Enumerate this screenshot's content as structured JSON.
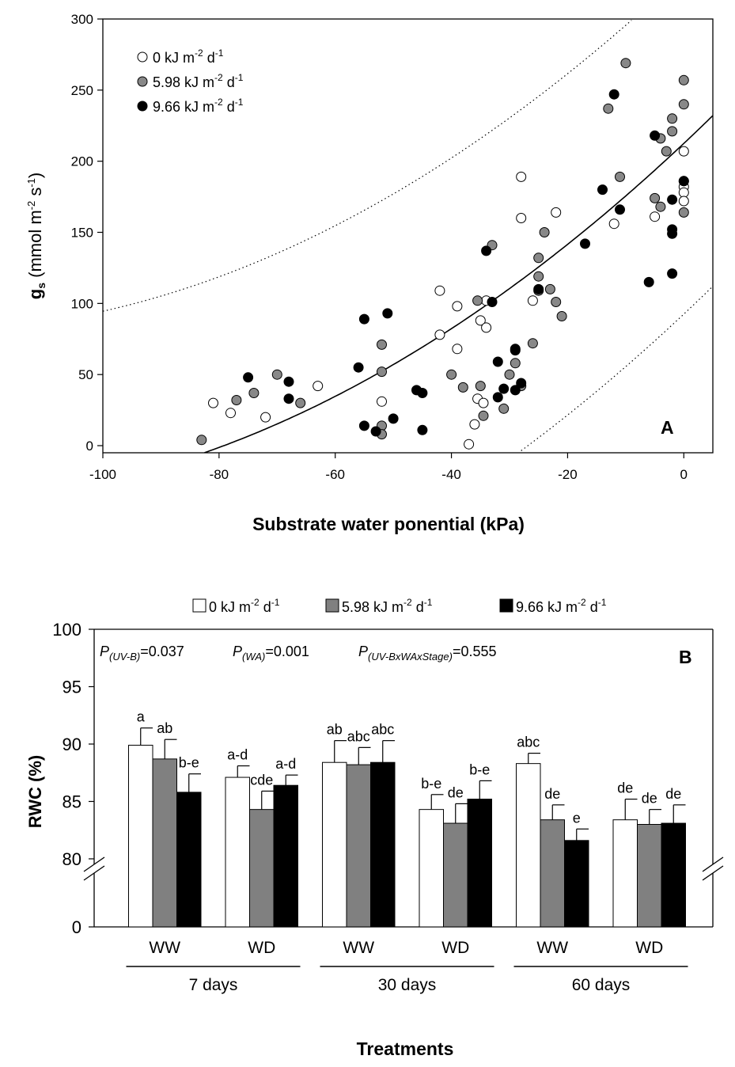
{
  "chart_data": [
    {
      "panel_label": "A",
      "type": "scatter",
      "xlabel": "Substrate water ponential (kPa)",
      "ylabel_main": "g",
      "ylabel_sub": "s",
      "ylabel_rest": " (mmol m",
      "ylabel_sup1": "-2",
      "ylabel_mid": " s",
      "ylabel_sup2": "-1",
      "ylabel_end": ")",
      "xlim": [
        -100,
        5
      ],
      "ylim": [
        -5,
        300
      ],
      "x_ticks": [
        -100,
        -80,
        -60,
        -40,
        -20,
        0
      ],
      "y_ticks": [
        0,
        50,
        100,
        150,
        200,
        250,
        300
      ],
      "fit_line": {
        "type": "quadratic",
        "coefficients": [
          212.5,
          3.84,
          0.0146
        ]
      },
      "confidence_band": {
        "upper_shift": 120,
        "lower_shift": -120,
        "style": "dotted"
      },
      "colors": {
        "0": "#ffffff",
        "5.98": "#888888",
        "9.66": "#000000"
      },
      "legend_position": "top-left",
      "series": [
        {
          "name_prefix": "0 kJ m",
          "name_sup1": "-2",
          "name_mid": " d",
          "name_sup2": "-1",
          "color": "#ffffff",
          "points": [
            [
              -81,
              30
            ],
            [
              -78,
              23
            ],
            [
              -72,
              20
            ],
            [
              -63,
              42
            ],
            [
              -52,
              31
            ],
            [
              -42,
              109
            ],
            [
              -42,
              78
            ],
            [
              -39,
              98
            ],
            [
              -39,
              68
            ],
            [
              -37,
              1
            ],
            [
              -36,
              15
            ],
            [
              -35.5,
              33
            ],
            [
              -35,
              88
            ],
            [
              -34.5,
              30
            ],
            [
              -34,
              102
            ],
            [
              -34,
              83
            ],
            [
              -28,
              189
            ],
            [
              -28,
              160
            ],
            [
              -26,
              102
            ],
            [
              -22,
              164
            ],
            [
              -12,
              156
            ],
            [
              -5,
              161
            ],
            [
              0,
              207
            ],
            [
              0,
              182
            ],
            [
              0,
              178
            ],
            [
              0,
              172
            ]
          ]
        },
        {
          "name_prefix": "5.98 kJ m",
          "name_sup1": "-2",
          "name_mid": " d",
          "name_sup2": "-1",
          "color": "#888888",
          "points": [
            [
              -83,
              4
            ],
            [
              -77,
              32
            ],
            [
              -74,
              37
            ],
            [
              -70,
              50
            ],
            [
              -66,
              30
            ],
            [
              -52,
              71
            ],
            [
              -52,
              52
            ],
            [
              -52,
              14
            ],
            [
              -52,
              8
            ],
            [
              -40,
              50
            ],
            [
              -38,
              41
            ],
            [
              -35.5,
              102
            ],
            [
              -35,
              42
            ],
            [
              -34.5,
              21
            ],
            [
              -33,
              141
            ],
            [
              -31,
              26
            ],
            [
              -30,
              50
            ],
            [
              -29,
              58
            ],
            [
              -28,
              42
            ],
            [
              -26,
              72
            ],
            [
              -25,
              109
            ],
            [
              -25,
              119
            ],
            [
              -25,
              132
            ],
            [
              -24,
              150
            ],
            [
              -23,
              110
            ],
            [
              -22,
              101
            ],
            [
              -21,
              91
            ],
            [
              -13,
              237
            ],
            [
              -11,
              189
            ],
            [
              -10,
              269
            ],
            [
              -5,
              174
            ],
            [
              -4,
              168
            ],
            [
              -4,
              216
            ],
            [
              -3,
              207
            ],
            [
              -2,
              230
            ],
            [
              -2,
              221
            ],
            [
              0,
              257
            ],
            [
              0,
              240
            ],
            [
              0,
              186
            ],
            [
              0,
              164
            ]
          ]
        },
        {
          "name_prefix": "9.66 kJ m",
          "name_sup1": "-2",
          "name_mid": " d",
          "name_sup2": "-1",
          "color": "#000000",
          "points": [
            [
              -75,
              48
            ],
            [
              -68,
              45
            ],
            [
              -68,
              33
            ],
            [
              -56,
              55
            ],
            [
              -55,
              89
            ],
            [
              -55,
              14
            ],
            [
              -53,
              10
            ],
            [
              -51,
              93
            ],
            [
              -50,
              19
            ],
            [
              -46,
              39
            ],
            [
              -45,
              37
            ],
            [
              -45,
              11
            ],
            [
              -34,
              137
            ],
            [
              -33,
              101
            ],
            [
              -32,
              59
            ],
            [
              -32,
              34
            ],
            [
              -31,
              40
            ],
            [
              -29,
              68
            ],
            [
              -29,
              67
            ],
            [
              -29,
              39
            ],
            [
              -28,
              44
            ],
            [
              -25,
              110
            ],
            [
              -17,
              142
            ],
            [
              -14,
              180
            ],
            [
              -12,
              247
            ],
            [
              -11,
              166
            ],
            [
              -6,
              115
            ],
            [
              -5,
              218
            ],
            [
              -2,
              173
            ],
            [
              -2,
              152
            ],
            [
              -2,
              149
            ],
            [
              -2,
              121
            ],
            [
              0,
              186
            ]
          ]
        }
      ]
    },
    {
      "panel_label": "B",
      "type": "bar",
      "ylabel": "RWC (%)",
      "xlabel": "Treatments",
      "y_ticks": [
        0,
        80,
        85,
        90,
        95,
        100
      ],
      "y_axis_break": true,
      "stats": [
        {
          "p_letter": "P",
          "sub": "(UV-B)",
          "value": "=0.037"
        },
        {
          "p_letter": "P",
          "sub": "(WA)",
          "value": "=0.001"
        },
        {
          "p_letter": "P",
          "sub": "(UV-BxWAxStage)",
          "value": "=0.555"
        }
      ],
      "categories": [
        "WW",
        "WD",
        "WW",
        "WD",
        "WW",
        "WD"
      ],
      "groups": [
        "7 days",
        "30 days",
        "60 days"
      ],
      "legend_position": "top",
      "series": [
        {
          "name_prefix": "0 kJ m",
          "name_sup1": "-2",
          "name_mid": " d",
          "name_sup2": "-1",
          "color": "#ffffff",
          "values": [
            89.9,
            87.1,
            88.4,
            84.3,
            88.3,
            83.4
          ],
          "errors": [
            1.5,
            1.0,
            1.9,
            1.3,
            0.9,
            1.8
          ],
          "labels": [
            "a",
            "a-d",
            "ab",
            "b-e",
            "abc",
            "de"
          ]
        },
        {
          "name_prefix": "5.98 kJ m",
          "name_sup1": "-2",
          "name_mid": " d",
          "name_sup2": "-1",
          "color": "#808080",
          "values": [
            88.7,
            84.3,
            88.2,
            83.1,
            83.4,
            83.0
          ],
          "errors": [
            1.7,
            1.6,
            1.5,
            1.7,
            1.3,
            1.3
          ],
          "labels": [
            "ab",
            "cde",
            "abc",
            "de",
            "de",
            "de"
          ]
        },
        {
          "name_prefix": "9.66 kJ m",
          "name_sup1": "-2",
          "name_mid": " d",
          "name_sup2": "-1",
          "color": "#000000",
          "values": [
            85.8,
            86.4,
            88.4,
            85.2,
            81.6,
            83.1
          ],
          "errors": [
            1.6,
            0.9,
            1.9,
            1.6,
            1.0,
            1.6
          ],
          "labels": [
            "b-e",
            "a-d",
            "abc",
            "b-e",
            "e",
            "de"
          ]
        }
      ]
    }
  ]
}
